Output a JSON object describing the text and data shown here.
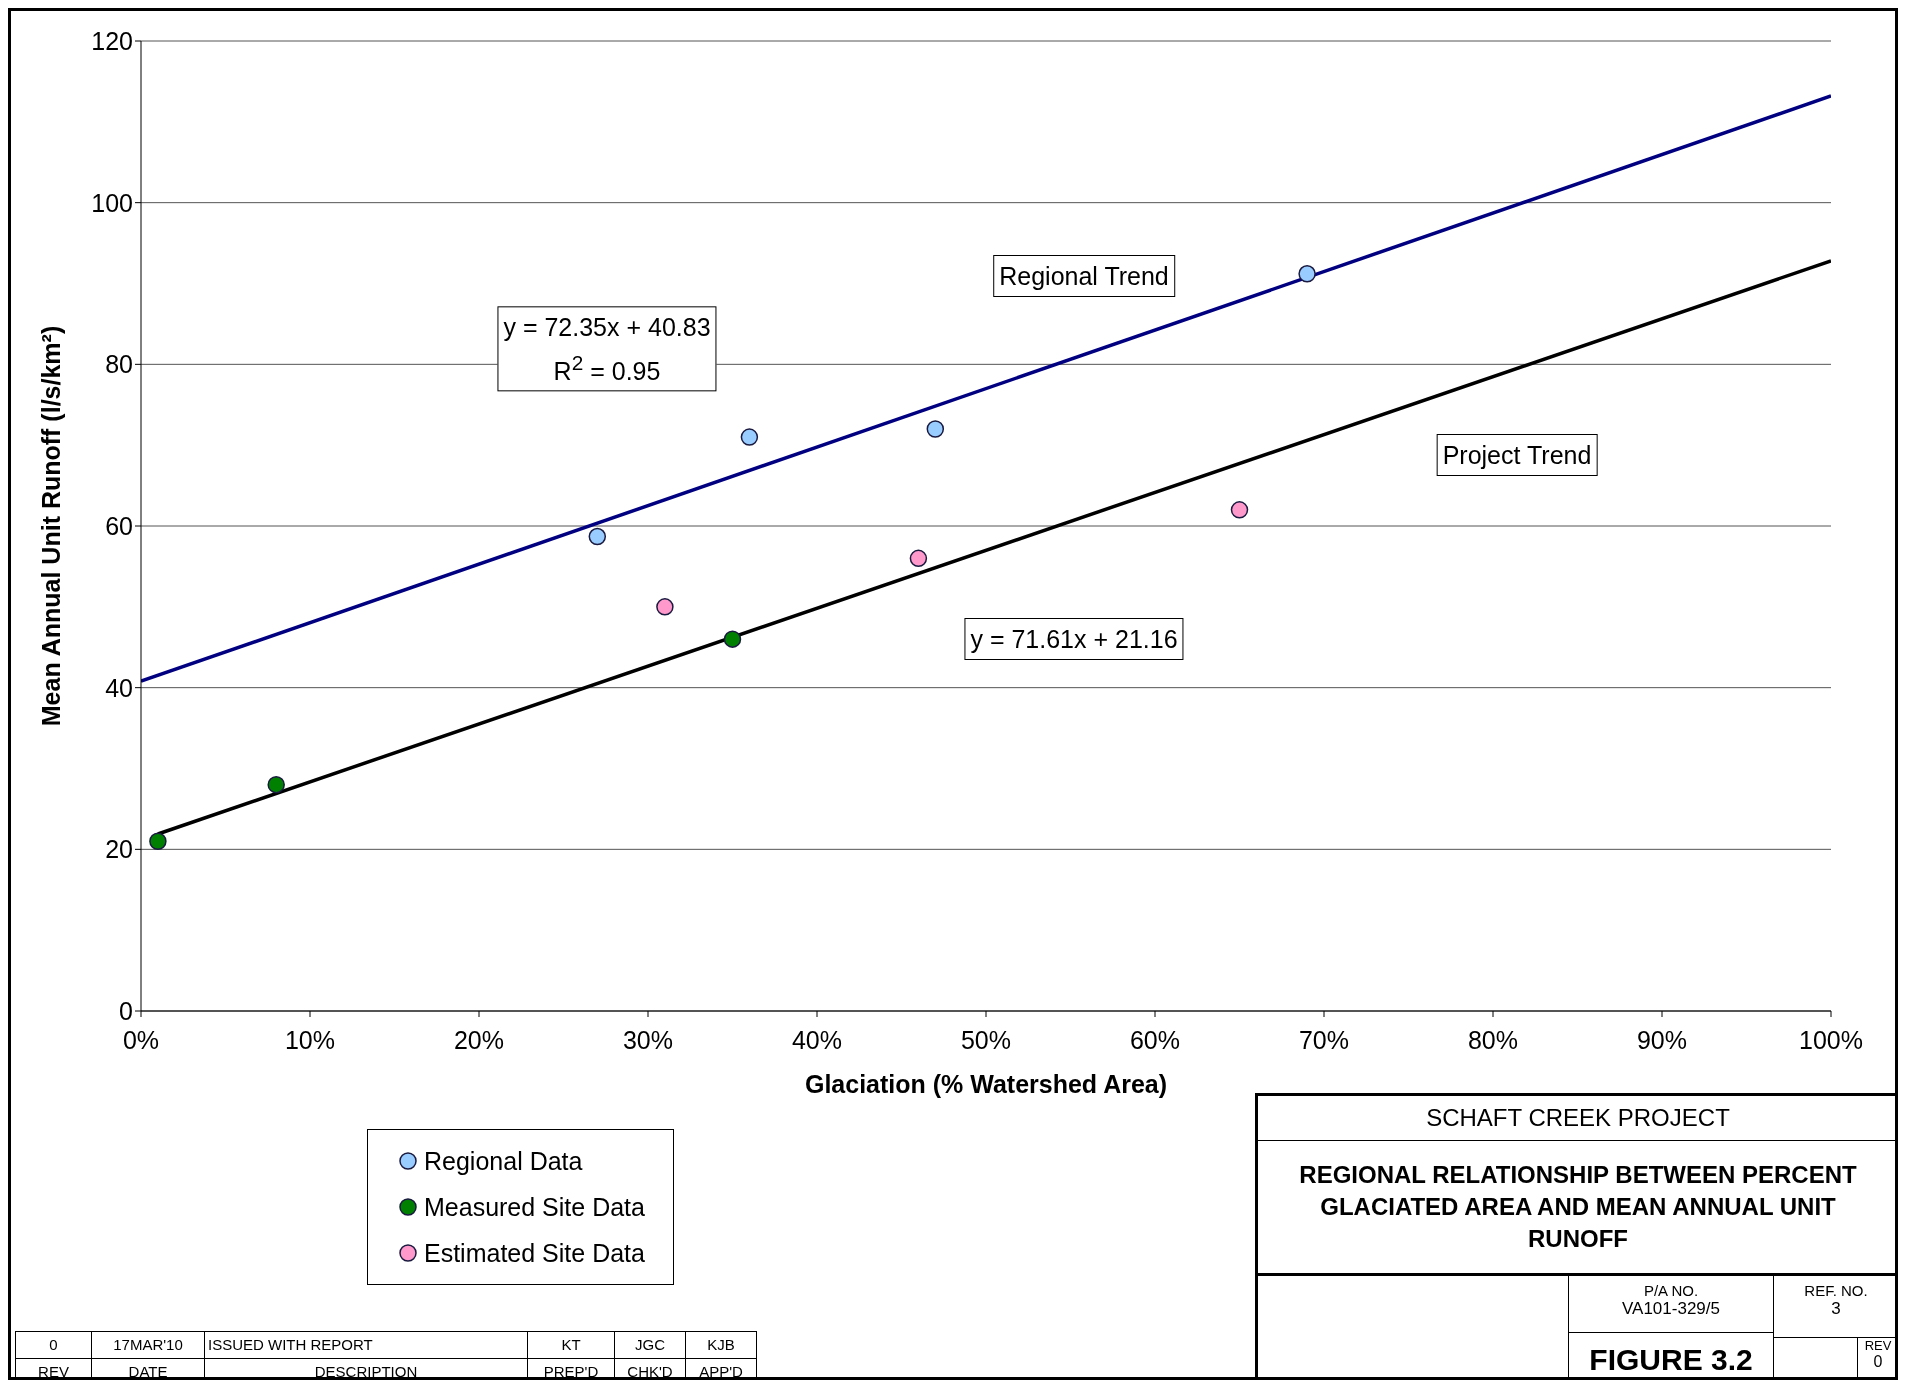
{
  "chart_data": {
    "type": "scatter",
    "title": "REGIONAL RELATIONSHIP BETWEEN PERCENT GLACIATED AREA AND MEAN ANNUAL UNIT RUNOFF",
    "subtitle": "SCHAFT CREEK PROJECT",
    "xlabel": "Glaciation (% Watershed Area)",
    "ylabel": "Mean Annual Unit Runoff (l/s/km²)",
    "xlim": [
      0,
      1
    ],
    "ylim": [
      0,
      120
    ],
    "xticks": [
      {
        "value": 0,
        "label": "0%"
      },
      {
        "value": 0.1,
        "label": "10%"
      },
      {
        "value": 0.2,
        "label": "20%"
      },
      {
        "value": 0.3,
        "label": "30%"
      },
      {
        "value": 0.4,
        "label": "40%"
      },
      {
        "value": 0.5,
        "label": "50%"
      },
      {
        "value": 0.6,
        "label": "60%"
      },
      {
        "value": 0.7,
        "label": "70%"
      },
      {
        "value": 0.8,
        "label": "80%"
      },
      {
        "value": 0.9,
        "label": "90%"
      },
      {
        "value": 1,
        "label": "100%"
      }
    ],
    "yticks": [
      0,
      20,
      40,
      60,
      80,
      100,
      120
    ],
    "grid": "y",
    "legend": "bottom left",
    "marker": "circle",
    "series": [
      {
        "name": "Regional Data",
        "color": "#99ccff",
        "x": [
          0.27,
          0.36,
          0.47,
          0.69
        ],
        "values": [
          58.7,
          71,
          72,
          91.2
        ]
      },
      {
        "name": "Measured Site Data",
        "color": "#008000",
        "x": [
          0.01,
          0.08,
          0.35
        ],
        "values": [
          21,
          28,
          46
        ]
      },
      {
        "name": "Estimated Site Data",
        "color": "#ff99cc",
        "x": [
          0.31,
          0.46,
          0.65
        ],
        "values": [
          50,
          56,
          62
        ]
      },
      {
        "type": "line",
        "marker": "none",
        "color": "#000080",
        "x": [
          0,
          1
        ],
        "values": [
          40.8,
          113.2
        ]
      },
      {
        "type": "line",
        "marker": "none",
        "color": "#000000",
        "x": [
          0.01,
          1
        ],
        "values": [
          21.9,
          92.8
        ]
      }
    ],
    "annotations": [
      "Regional Trend",
      "y = 72.35x + 40.83\nR$^{2}$ = 0.95",
      "Project Trend",
      "y = 71.61x + 21.16",
      "0",
      "17MAR'10",
      "ISSUED WITH REPORT",
      "KT",
      "JGC",
      "KJB",
      "REV",
      "DATE",
      "DESCRIPTION",
      "PREP'D",
      "CHK'D",
      "APP'D",
      "P/A NO.",
      "VA101-329/5",
      "REF.  NO.",
      "3",
      "FIGURE 3.2",
      "REV",
      "0"
    ]
  }
}
